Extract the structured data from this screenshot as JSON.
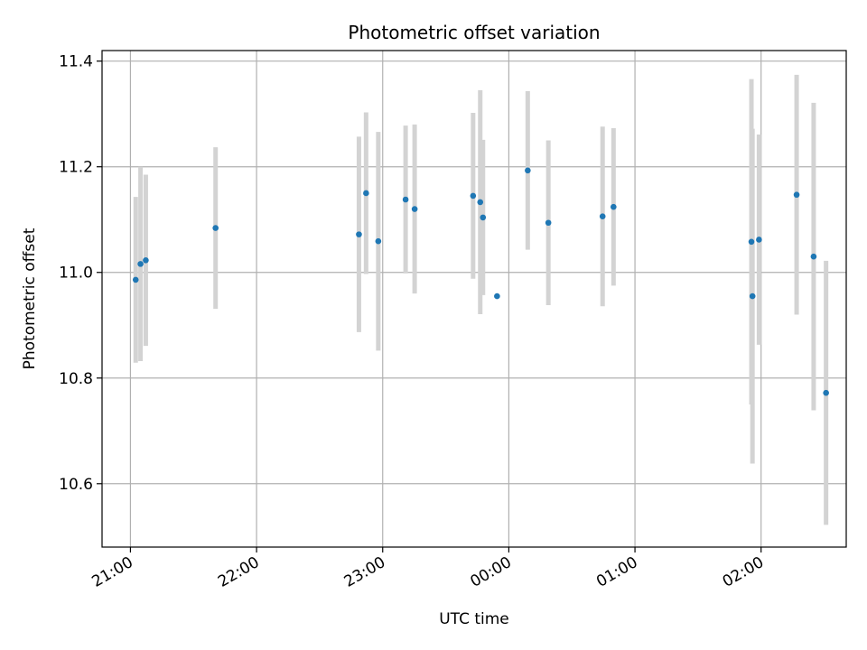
{
  "chart_data": {
    "type": "scatter",
    "title": "Photometric offset variation",
    "xlabel": "UTC time",
    "ylabel": "Photometric offset",
    "x_tick_labels": [
      "21:00",
      "22:00",
      "23:00",
      "00:00",
      "01:00",
      "02:00"
    ],
    "x_tick_minutes": [
      0,
      60,
      120,
      180,
      240,
      300
    ],
    "xlim_minutes": [
      -13.5,
      340.5
    ],
    "y_ticks": [
      10.6,
      10.8,
      11.0,
      11.2,
      11.4
    ],
    "y_tick_labels": [
      "10.6",
      "10.8",
      "11.0",
      "11.2",
      "11.4"
    ],
    "ylim": [
      10.48,
      11.42
    ],
    "grid": true,
    "colors": {
      "marker": "#1f77b4",
      "errorbar": "#d3d3d3",
      "grid": "#b0b0b0",
      "axes": "#000000"
    },
    "points": [
      {
        "x": 2.5,
        "y": 10.986,
        "err": 0.157
      },
      {
        "x": 4.8,
        "y": 11.016,
        "err": 0.184
      },
      {
        "x": 7.3,
        "y": 11.023,
        "err": 0.162
      },
      {
        "x": 40.5,
        "y": 11.084,
        "err": 0.153
      },
      {
        "x": 108.7,
        "y": 11.072,
        "err": 0.185
      },
      {
        "x": 112.1,
        "y": 11.15,
        "err": 0.153
      },
      {
        "x": 117.9,
        "y": 11.059,
        "err": 0.207
      },
      {
        "x": 130.9,
        "y": 11.138,
        "err": 0.14
      },
      {
        "x": 135.2,
        "y": 11.12,
        "err": 0.16
      },
      {
        "x": 163.0,
        "y": 11.145,
        "err": 0.157
      },
      {
        "x": 166.4,
        "y": 11.133,
        "err": 0.212
      },
      {
        "x": 167.7,
        "y": 11.104,
        "err": 0.147
      },
      {
        "x": 174.4,
        "y": 10.955
      },
      {
        "x": 189.0,
        "y": 11.193,
        "err": 0.15
      },
      {
        "x": 198.8,
        "y": 11.094,
        "err": 0.156
      },
      {
        "x": 224.6,
        "y": 11.106,
        "err": 0.17
      },
      {
        "x": 229.8,
        "y": 11.124,
        "err": 0.149
      },
      {
        "x": 295.4,
        "y": 11.058,
        "err": 0.308
      },
      {
        "x": 295.9,
        "y": 10.955,
        "err": 0.317
      },
      {
        "x": 299.0,
        "y": 11.062,
        "err": 0.199
      },
      {
        "x": 316.9,
        "y": 11.147,
        "err": 0.227
      },
      {
        "x": 325.0,
        "y": 11.03,
        "err": 0.291
      },
      {
        "x": 330.9,
        "y": 10.772,
        "err": 0.25
      }
    ]
  }
}
